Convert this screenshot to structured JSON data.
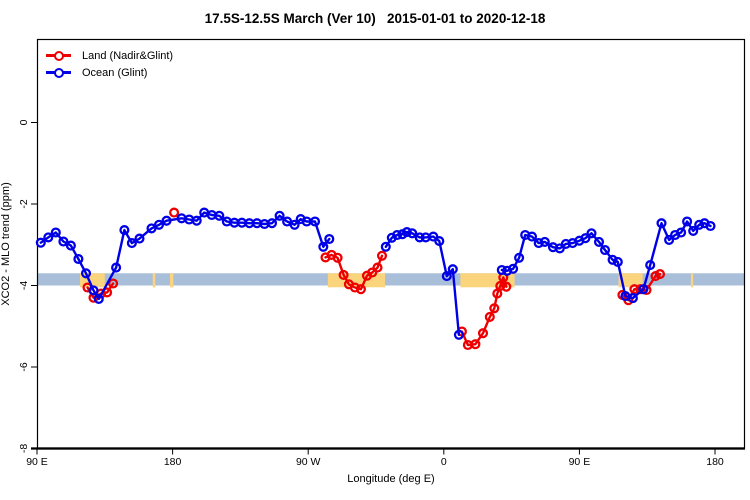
{
  "title": "17.5S-12.5S March (Ver 10)   2015-01-01 to 2020-12-18",
  "legend": [
    {
      "label": "Land (Nadir&Glint)",
      "color": "#ee0000"
    },
    {
      "label": "Ocean (Glint)",
      "color": "#0000e6"
    }
  ],
  "chart_data": {
    "type": "line",
    "title": "17.5S-12.5S March (Ver 10)   2015-01-01 to 2020-12-18",
    "xlabel": "Longitude (deg E)",
    "ylabel": "XCO2 - MLO trend (ppm)",
    "xlim": [
      90,
      561
    ],
    "ylim": [
      -8,
      0
    ],
    "grid": false,
    "legend_position": "top-left",
    "x_ticks": [
      {
        "lon": 90,
        "label": "90 E"
      },
      {
        "lon": 180,
        "label": "180"
      },
      {
        "lon": 270,
        "label": "90 W"
      },
      {
        "lon": 360,
        "label": "0"
      },
      {
        "lon": 450,
        "label": "90 E"
      },
      {
        "lon": 540,
        "label": "180"
      }
    ],
    "y_ticks": [
      {
        "v": 0,
        "label": "0"
      },
      {
        "v": -2,
        "label": "-2"
      },
      {
        "v": -4,
        "label": "-4"
      },
      {
        "v": -6,
        "label": "-6"
      },
      {
        "v": -8,
        "label": "-8"
      }
    ],
    "reference_band": {
      "value_range": [
        -3.7,
        -4.0
      ],
      "color": "#a9bed9",
      "highlight_color": "#fbd47e",
      "highlight_segments_lon": [
        [
          118.5,
          135
        ],
        [
          166.8,
          168.5
        ],
        [
          178.3,
          180.5
        ],
        [
          283,
          321
        ],
        [
          371,
          407
        ],
        [
          476,
          492
        ],
        [
          524,
          525.5
        ]
      ]
    },
    "series": [
      {
        "name": "Land (Nadir&Glint)",
        "color": "#ee0000",
        "marker": "open-circle",
        "segments": [
          [
            [
              123.5,
              -4.05
            ],
            [
              127.5,
              -4.3
            ],
            [
              132.5,
              -4.2
            ],
            [
              136.5,
              -4.17
            ],
            [
              140.5,
              -3.95
            ]
          ],
          [
            [
              181,
              -2.21
            ]
          ],
          [
            [
              281.5,
              -3.31
            ],
            [
              285.5,
              -3.25
            ],
            [
              289.5,
              -3.32
            ],
            [
              293.5,
              -3.74
            ],
            [
              297,
              -3.97
            ],
            [
              301,
              -4.05
            ],
            [
              305,
              -4.09
            ],
            [
              309,
              -3.76
            ],
            [
              312.5,
              -3.68
            ],
            [
              316,
              -3.56
            ],
            [
              319,
              -3.27
            ]
          ],
          [
            [
              372,
              -5.13
            ],
            [
              376,
              -5.46
            ],
            [
              381,
              -5.44
            ],
            [
              386,
              -5.17
            ],
            [
              390.5,
              -4.77
            ],
            [
              393.5,
              -4.56
            ],
            [
              395.5,
              -4.2
            ],
            [
              397.5,
              -4.01
            ],
            [
              399.5,
              -3.8
            ],
            [
              401.5,
              -4.03
            ]
          ],
          [
            [
              478.5,
              -4.23
            ],
            [
              482.5,
              -4.36
            ],
            [
              486.5,
              -4.09
            ],
            [
              490.5,
              -4.09
            ],
            [
              494.5,
              -4.11
            ],
            [
              500.5,
              -3.77
            ],
            [
              503.5,
              -3.72
            ]
          ]
        ]
      },
      {
        "name": "Ocean (Glint)",
        "color": "#0000e6",
        "marker": "open-circle",
        "segments": [
          [
            [
              92.5,
              -2.95
            ],
            [
              97.5,
              -2.82
            ],
            [
              102.5,
              -2.7
            ],
            [
              107.5,
              -2.92
            ],
            [
              112.5,
              -3.02
            ],
            [
              117.5,
              -3.35
            ],
            [
              122.5,
              -3.7
            ],
            [
              127.5,
              -4.12
            ],
            [
              131,
              -4.33
            ],
            [
              142.5,
              -3.56
            ],
            [
              148,
              -2.64
            ],
            [
              153,
              -2.96
            ],
            [
              158,
              -2.85
            ],
            [
              166,
              -2.6
            ],
            [
              171,
              -2.51
            ],
            [
              176,
              -2.41
            ],
            [
              186,
              -2.35
            ],
            [
              191,
              -2.38
            ],
            [
              196,
              -2.41
            ],
            [
              201,
              -2.21
            ],
            [
              206,
              -2.27
            ],
            [
              211,
              -2.29
            ],
            [
              216,
              -2.43
            ],
            [
              221,
              -2.46
            ],
            [
              226,
              -2.46
            ],
            [
              231,
              -2.47
            ],
            [
              236,
              -2.47
            ],
            [
              241,
              -2.49
            ],
            [
              246,
              -2.47
            ],
            [
              251,
              -2.29
            ],
            [
              256,
              -2.43
            ],
            [
              261,
              -2.51
            ],
            [
              265,
              -2.37
            ],
            [
              269,
              -2.43
            ],
            [
              274.5,
              -2.43
            ],
            [
              280,
              -3.05
            ],
            [
              284,
              -2.86
            ]
          ],
          [
            [
              321.5,
              -3.05
            ],
            [
              325.5,
              -2.83
            ],
            [
              329,
              -2.76
            ],
            [
              332.5,
              -2.74
            ],
            [
              335.5,
              -2.69
            ],
            [
              339,
              -2.72
            ],
            [
              344,
              -2.82
            ],
            [
              348,
              -2.82
            ],
            [
              353,
              -2.8
            ],
            [
              357,
              -2.91
            ],
            [
              362,
              -3.77
            ],
            [
              366,
              -3.6
            ],
            [
              370,
              -5.21
            ]
          ],
          [
            [
              398.5,
              -3.62
            ],
            [
              402,
              -3.64
            ],
            [
              406,
              -3.59
            ],
            [
              410,
              -3.32
            ],
            [
              414,
              -2.76
            ],
            [
              418.5,
              -2.8
            ],
            [
              423,
              -2.96
            ],
            [
              427,
              -2.93
            ],
            [
              432.5,
              -3.06
            ],
            [
              437,
              -3.09
            ],
            [
              441,
              -2.98
            ],
            [
              445.5,
              -2.96
            ],
            [
              450,
              -2.9
            ],
            [
              454,
              -2.84
            ],
            [
              458,
              -2.72
            ],
            [
              463,
              -2.93
            ],
            [
              467,
              -3.13
            ],
            [
              472,
              -3.37
            ],
            [
              475.5,
              -3.42
            ],
            [
              480.5,
              -4.26
            ],
            [
              485.5,
              -4.31
            ],
            [
              492.5,
              -4.09
            ],
            [
              497,
              -3.5
            ],
            [
              504.5,
              -2.47
            ],
            [
              509.5,
              -2.88
            ],
            [
              513.5,
              -2.76
            ],
            [
              517.5,
              -2.7
            ],
            [
              521.5,
              -2.43
            ],
            [
              525.5,
              -2.66
            ],
            [
              529.5,
              -2.51
            ],
            [
              533,
              -2.47
            ],
            [
              537,
              -2.54
            ]
          ]
        ]
      }
    ]
  }
}
